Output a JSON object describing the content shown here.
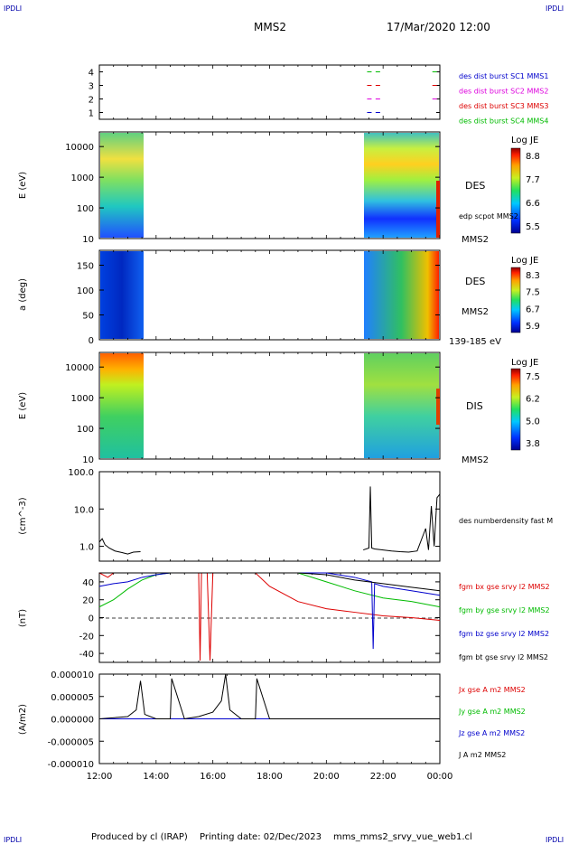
{
  "header": {
    "corner_tl": "IPDLI",
    "corner_tr": "IPDLI",
    "corner_bl": "IPDLI",
    "corner_br": "IPDLI",
    "spacecraft": "MMS2",
    "datetime": "17/Mar/2020 12:00"
  },
  "footer": {
    "produced": "Produced by cl (IRAP)",
    "printing": "Printing date: 02/Dec/2023",
    "file": "mms_mms2_srvy_vue_web1.cl"
  },
  "colors": {
    "blue": "#0000cc",
    "magenta": "#dd00dd",
    "red": "#dd0000",
    "green": "#00bb00",
    "black": "#000000"
  },
  "chart_data": [
    {
      "type": "scatter",
      "panel": "burst availability",
      "yticks": [
        "1",
        "2",
        "3",
        "4"
      ],
      "ylim": [
        0.5,
        4.5
      ],
      "series": [
        {
          "name": "des dist burst SC1 MMS1",
          "color": "#0000cc",
          "y": 1,
          "x_hours": [
            21.5,
            21.8
          ]
        },
        {
          "name": "des dist burst SC2 MMS2",
          "color": "#dd00dd",
          "y": 2,
          "x_hours": [
            21.5,
            21.8,
            23.8
          ]
        },
        {
          "name": "des dist burst SC3 MMS3",
          "color": "#dd0000",
          "y": 3,
          "x_hours": [
            21.5,
            21.8,
            23.8
          ]
        },
        {
          "name": "des dist burst SC4 MMS4",
          "color": "#00bb00",
          "y": 4,
          "x_hours": [
            21.5,
            21.8,
            23.8
          ]
        }
      ]
    },
    {
      "type": "heatmap",
      "panel": "DES energy spectrogram",
      "ylabel": "E (eV)",
      "yscale": "log",
      "yticks": [
        "10",
        "100",
        "1000",
        "10000"
      ],
      "label": "DES",
      "sublabel": "MMS2",
      "overlay": "edp scpot MMS2",
      "colorbar": {
        "title": "Log JE",
        "ticks": [
          "8.8",
          "7.7",
          "6.6",
          "5.5"
        ]
      },
      "data_intervals_hours": [
        [
          12.0,
          13.5
        ],
        [
          21.3,
          24.0
        ]
      ]
    },
    {
      "type": "heatmap",
      "panel": "DES pitch angle",
      "ylabel": "a (deg)",
      "yticks": [
        "0",
        "50",
        "100",
        "150"
      ],
      "ylim": [
        0,
        180
      ],
      "label": "DES",
      "sublabel": "MMS2",
      "energy_range": "139-185 eV",
      "colorbar": {
        "title": "Log JE",
        "ticks": [
          "8.3",
          "7.5",
          "6.7",
          "5.9"
        ]
      },
      "data_intervals_hours": [
        [
          12.0,
          13.5
        ],
        [
          21.3,
          24.0
        ]
      ]
    },
    {
      "type": "heatmap",
      "panel": "DIS energy spectrogram",
      "ylabel": "E (eV)",
      "yscale": "log",
      "yticks": [
        "10",
        "100",
        "1000",
        "10000"
      ],
      "label": "DIS",
      "sublabel": "MMS2",
      "colorbar": {
        "title": "Log JE",
        "ticks": [
          "7.5",
          "6.2",
          "5.0",
          "3.8"
        ]
      },
      "data_intervals_hours": [
        [
          12.0,
          13.5
        ],
        [
          21.3,
          24.0
        ]
      ]
    },
    {
      "type": "line",
      "panel": "density",
      "ylabel": "(cm^-3)",
      "yscale": "log",
      "ylim": [
        0.4,
        100
      ],
      "yticks": [
        "1.0",
        "10.0",
        "100.0"
      ],
      "series": [
        {
          "name": "des numberdensity fast M",
          "color": "#000000",
          "x_hours": [
            12.0,
            12.1,
            12.2,
            12.35,
            12.55,
            12.8,
            13.0,
            13.2,
            13.45,
            21.3,
            21.5,
            21.55,
            21.6,
            21.7,
            22.0,
            22.3,
            22.6,
            22.9,
            23.2,
            23.5,
            23.6,
            23.7,
            23.8,
            23.9,
            24.0
          ],
          "y": [
            1.3,
            1.6,
            1.1,
            0.9,
            0.75,
            0.68,
            0.62,
            0.7,
            0.72,
            0.8,
            0.9,
            40.0,
            0.9,
            0.85,
            0.8,
            0.75,
            0.72,
            0.7,
            0.75,
            3.0,
            0.8,
            12.0,
            1.0,
            20.0,
            25.0
          ]
        }
      ]
    },
    {
      "type": "line",
      "panel": "magnetic field",
      "ylabel": "(nT)",
      "ylim": [
        -50,
        50
      ],
      "yticks": [
        "-40",
        "-20",
        "0",
        "20",
        "40"
      ],
      "zero_line": "dashed",
      "series": [
        {
          "name": "fgm bx gse srvy l2 MMS2",
          "color": "#dd0000",
          "x_hours": [
            12.0,
            12.3,
            12.5,
            13.5,
            15.5,
            15.55,
            15.6,
            15.8,
            15.9,
            16.0,
            16.9,
            17.5,
            18.0,
            19.0,
            20.0,
            21.0,
            22.0,
            23.0,
            24.0
          ],
          "y": [
            50,
            45,
            50,
            50,
            50,
            -48,
            50,
            50,
            -48,
            50,
            50,
            50,
            35,
            18,
            10,
            6,
            2,
            0,
            -3
          ]
        },
        {
          "name": "fgm by gse srvy l2 MMS2",
          "color": "#00bb00",
          "x_hours": [
            12.0,
            12.5,
            13.0,
            13.5,
            14.0,
            14.5,
            15.0,
            16.0,
            17.0,
            18.0,
            19.0,
            20.0,
            21.0,
            22.0,
            23.0,
            24.0
          ],
          "y": [
            12,
            20,
            32,
            42,
            48,
            50,
            50,
            50,
            50,
            50,
            50,
            40,
            30,
            22,
            18,
            12
          ]
        },
        {
          "name": "fgm bz gse srvy l2 MMS2",
          "color": "#0000cc",
          "x_hours": [
            12.0,
            12.5,
            13.0,
            13.5,
            14.0,
            14.5,
            15.0,
            16.0,
            17.0,
            18.0,
            19.0,
            20.0,
            21.0,
            21.6,
            21.65,
            21.7,
            22.0,
            23.0,
            24.0
          ],
          "y": [
            35,
            38,
            40,
            45,
            48,
            50,
            50,
            50,
            50,
            50,
            50,
            50,
            45,
            40,
            -35,
            38,
            35,
            30,
            25
          ]
        },
        {
          "name": "fgm bt gse srvy l2 MMS2",
          "color": "#000000",
          "x_hours": [
            12.0,
            13.0,
            14.0,
            15.0,
            16.0,
            17.0,
            18.0,
            19.0,
            20.0,
            21.0,
            22.0,
            23.0,
            24.0
          ],
          "y": [
            50,
            50,
            50,
            50,
            50,
            50,
            50,
            50,
            48,
            42,
            38,
            34,
            30
          ]
        }
      ]
    },
    {
      "type": "line",
      "panel": "current density",
      "ylabel": "(A/m2)",
      "ylim": [
        -1e-05,
        1e-05
      ],
      "yticks": [
        "-0.000010",
        "-0.000005",
        "0.000000",
        "0.000005",
        "0.000010"
      ],
      "series": [
        {
          "name": "Jx gse A m2 MMS2",
          "color": "#dd0000"
        },
        {
          "name": "Jy gse A m2 MMS2",
          "color": "#00bb00"
        },
        {
          "name": "Jz gse A m2 MMS2",
          "color": "#0000cc"
        },
        {
          "name": "J A m2 MMS2",
          "color": "#000000",
          "x_hours": [
            12.0,
            13.0,
            13.3,
            13.45,
            13.6,
            14.0,
            14.5,
            14.55,
            15.0,
            15.5,
            16.0,
            16.3,
            16.45,
            16.6,
            17.0,
            17.5,
            17.55,
            18.0,
            24.0
          ],
          "y": [
            0.0,
            5e-07,
            2e-06,
            8.5e-06,
            1e-06,
            0.0,
            0.0,
            9e-06,
            0.0,
            5e-07,
            1.5e-06,
            4e-06,
            1e-05,
            2e-06,
            0.0,
            0.0,
            9e-06,
            0.0,
            0.0
          ]
        }
      ]
    }
  ],
  "xaxis": {
    "ticks": [
      "12:00",
      "14:00",
      "16:00",
      "18:00",
      "20:00",
      "22:00",
      "00:00"
    ],
    "range_hours": [
      12,
      24
    ]
  }
}
